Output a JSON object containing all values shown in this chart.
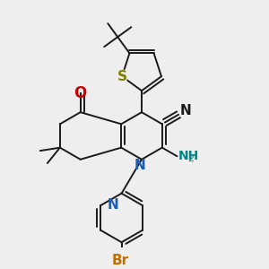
{
  "bg_color": "#eeeeee",
  "bond_color": "#1a1a1a",
  "bond_width": 1.4,
  "dbo": 0.012,
  "figsize": [
    3.0,
    3.0
  ],
  "dpi": 100,
  "xlim": [
    0.15,
    0.85
  ],
  "ylim": [
    0.08,
    0.98
  ]
}
